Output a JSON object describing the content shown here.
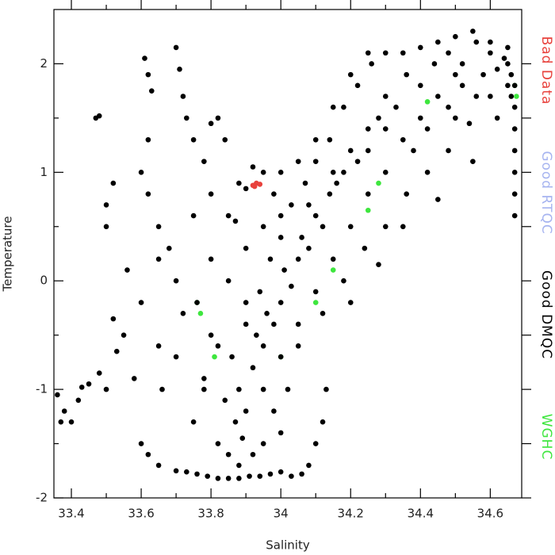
{
  "chart_data": {
    "type": "scatter",
    "xlabel": "Salinity",
    "ylabel": "Temperature",
    "xlim": [
      33.35,
      34.69
    ],
    "ylim": [
      -2,
      2.5
    ],
    "xticks": [
      33.4,
      33.6,
      33.8,
      34.0,
      34.2,
      34.4,
      34.6
    ],
    "yticks": [
      -2,
      -1,
      0,
      1,
      2
    ],
    "legend": "right",
    "series": [
      {
        "name": "Bad Data",
        "color": "#e8413c",
        "x": [
          33.92,
          33.93,
          33.94,
          33.925
        ],
        "values": [
          0.88,
          0.9,
          0.89,
          0.87
        ]
      },
      {
        "name": "Good RTQC",
        "color": "#a6b4f0",
        "x": [],
        "values": []
      },
      {
        "name": "Good DMQC",
        "color": "#000000",
        "x": [
          33.85,
          33.87,
          33.88,
          33.9,
          33.92,
          33.93,
          33.95,
          33.96,
          33.98,
          34.0,
          34.01,
          34.03,
          34.05,
          34.06,
          34.08,
          34.1,
          34.12,
          34.14,
          34.16,
          34.18,
          34.2,
          34.22,
          34.25,
          34.28,
          34.3,
          34.33,
          34.36,
          34.4,
          34.44,
          34.48,
          34.52,
          34.56,
          34.6,
          33.82,
          33.84,
          33.86,
          33.9,
          33.94,
          33.97,
          34.0,
          34.03,
          34.07,
          34.1,
          34.14,
          34.18,
          34.22,
          34.26,
          34.3,
          33.89,
          33.95,
          34.0,
          34.05,
          34.1,
          34.15,
          34.2,
          34.25,
          34.3,
          34.35,
          34.4,
          34.45,
          34.5,
          34.05,
          34.12,
          34.18,
          34.24,
          34.3,
          34.36,
          34.42,
          34.48,
          34.54,
          34.6,
          34.65,
          34.2,
          34.28,
          34.35,
          34.45,
          34.55,
          34.62,
          34.5,
          34.55,
          34.6,
          34.65,
          34.65,
          34.62,
          34.58,
          34.52,
          34.45,
          34.4,
          34.35,
          34.66,
          34.67,
          34.67,
          34.67,
          34.67,
          34.67,
          34.67,
          34.67,
          34.66,
          34.64,
          34.48,
          34.42,
          34.38,
          34.5,
          34.56,
          33.7,
          33.73,
          33.76,
          33.79,
          33.82,
          33.85,
          33.88,
          33.91,
          33.94,
          33.97,
          34.0,
          34.03,
          34.06,
          34.08,
          34.1,
          34.12,
          33.65,
          33.62,
          33.6,
          34.13,
          34.0,
          33.95,
          33.75,
          33.78,
          33.8,
          33.76,
          33.72,
          33.7,
          33.68,
          33.65,
          33.62,
          33.6,
          33.62,
          33.61,
          33.62,
          33.63,
          33.7,
          33.71,
          33.72,
          33.73,
          33.75,
          33.78,
          33.8,
          33.82,
          33.84,
          33.8,
          33.85,
          33.88,
          33.9,
          33.95,
          33.98,
          34.0,
          34.05,
          34.1,
          34.15,
          34.2,
          34.25,
          33.9,
          33.85,
          33.8,
          33.75,
          33.9,
          33.82,
          33.78,
          33.7,
          33.65,
          33.66,
          33.58,
          33.55,
          33.5,
          33.5,
          33.52,
          33.56,
          33.52,
          33.47,
          33.48,
          33.45,
          33.43,
          33.42,
          33.38,
          33.36,
          33.37,
          33.4,
          33.48,
          33.53,
          33.5,
          33.6,
          33.65,
          33.95,
          34.0,
          34.08,
          34.15,
          34.25,
          34.3,
          33.92,
          33.87,
          34.02,
          33.98,
          33.92,
          33.88
        ],
        "values": [
          -1.6,
          -1.3,
          -1.0,
          -1.2,
          -0.8,
          -0.5,
          -0.6,
          -0.3,
          -0.4,
          -0.2,
          0.1,
          -0.05,
          0.2,
          0.4,
          0.3,
          0.6,
          0.5,
          0.8,
          0.9,
          1.0,
          1.2,
          1.1,
          1.4,
          1.5,
          1.7,
          1.6,
          1.9,
          1.8,
          2.0,
          2.1,
          2.0,
          2.2,
          2.1,
          -1.5,
          -1.1,
          -0.7,
          -0.4,
          -0.1,
          0.2,
          0.4,
          0.7,
          0.9,
          1.1,
          1.3,
          1.6,
          1.8,
          2.0,
          2.1,
          -1.45,
          -1.0,
          -0.7,
          -0.4,
          -0.1,
          0.2,
          0.5,
          0.8,
          1.0,
          1.3,
          1.5,
          1.7,
          1.9,
          -0.6,
          -0.3,
          0,
          0.3,
          0.5,
          0.8,
          1.0,
          1.2,
          1.45,
          1.7,
          1.8,
          -0.2,
          0.15,
          0.5,
          0.75,
          1.1,
          1.5,
          2.25,
          2.3,
          2.2,
          2.15,
          2.0,
          1.95,
          1.9,
          1.8,
          2.2,
          2.15,
          2.1,
          1.9,
          1.8,
          1.6,
          1.4,
          1.2,
          1.0,
          0.8,
          0.6,
          1.7,
          2.05,
          1.6,
          1.4,
          1.2,
          1.5,
          1.7,
          -1.75,
          -1.76,
          -1.78,
          -1.8,
          -1.82,
          -1.82,
          -1.82,
          -1.8,
          -1.8,
          -1.78,
          -1.76,
          -1.8,
          -1.78,
          -1.7,
          -1.5,
          -1.3,
          -1.7,
          -1.6,
          -1.5,
          -1.0,
          -1.4,
          -1.5,
          -1.3,
          -0.9,
          -0.5,
          -0.2,
          -0.3,
          0,
          0.3,
          0.5,
          0.8,
          1.0,
          1.3,
          2.05,
          1.9,
          1.75,
          2.15,
          1.95,
          1.7,
          1.5,
          1.3,
          1.1,
          1.45,
          1.5,
          1.3,
          0.8,
          0.6,
          0.9,
          0.85,
          1.0,
          0.8,
          1.0,
          1.1,
          1.3,
          1.6,
          1.9,
          2.1,
          0.3,
          0,
          0.2,
          0.6,
          -0.2,
          -0.6,
          -1.0,
          -0.7,
          -0.6,
          -1.0,
          -0.9,
          -0.5,
          0.5,
          0.7,
          0.9,
          0.1,
          -0.35,
          1.5,
          1.52,
          -0.95,
          -0.98,
          -1.1,
          -1.2,
          -1.05,
          -1.3,
          -1.3,
          -0.85,
          -0.65,
          -1.0,
          -0.2,
          0.2,
          0.5,
          0.6,
          0.7,
          1.0,
          1.2,
          1.4,
          1.05,
          0.55,
          -1.0,
          -1.2,
          -1.6,
          -1.7
        ]
      },
      {
        "name": "WGHC",
        "color": "#3ee63e",
        "x": [
          33.76,
          33.77,
          33.81,
          34.1,
          34.15,
          34.25,
          34.28,
          34.42,
          34.67,
          34.675,
          34.0
        ],
        "values": [
          -0.2,
          -0.3,
          -0.7,
          -0.2,
          0.1,
          0.65,
          0.9,
          1.65,
          1.8,
          1.7,
          -0.7
        ]
      }
    ]
  }
}
